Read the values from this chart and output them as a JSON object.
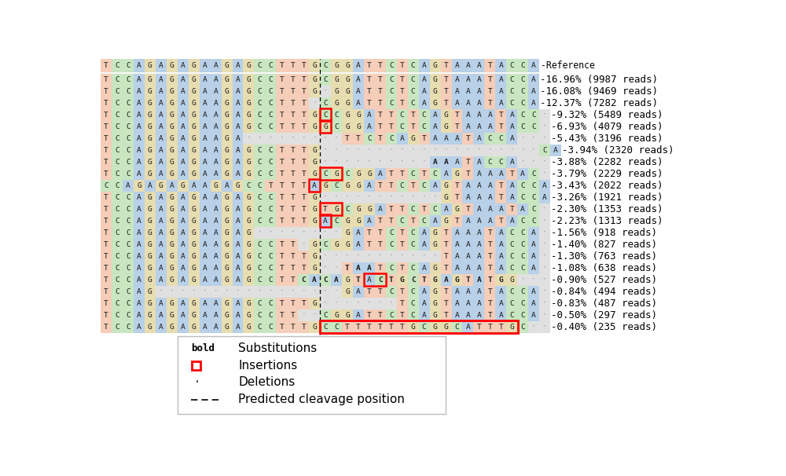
{
  "reference_seq": "TCCAGAGAGAAGAGCCTTTGCGGATTCTCAGTAAATACCA",
  "row_data": [
    {
      "seq": "TCCAGAGAGAAGAGCCTTTGCGGATTCTCAGTAAATACCA",
      "bold": [],
      "ins": [],
      "pct": "16.96%",
      "reads": "9987 reads"
    },
    {
      "seq": "TCCAGAGAGAAGAGCCTTTG·GGATTCTCAGTAAATACCA",
      "bold": [],
      "ins": [],
      "pct": "16.08%",
      "reads": "9469 reads"
    },
    {
      "seq": "TCCAGAGAGAAGAGCCTTT·CGGATTCTCAGTAAATACCA",
      "bold": [],
      "ins": [],
      "pct": "12.37%",
      "reads": "7282 reads"
    },
    {
      "seq": "TCCAGAGAGAAGAGCCTTTGCCGGATTCTCAGTAAATACC·",
      "bold": [],
      "ins": [
        20
      ],
      "pct": "9.32%",
      "reads": "5489 reads"
    },
    {
      "seq": "TCCAGAGAGAAGAGCCTTTGGCGGATTCTCAGTAAATACC·",
      "bold": [],
      "ins": [
        20
      ],
      "pct": "6.93%",
      "reads": "4079 reads"
    },
    {
      "seq": "TCCAGAGAGAAGA·········TTCTCAGTAAATACCA···",
      "bold": [],
      "ins": [],
      "pct": "5.43%",
      "reads": "3196 reads"
    },
    {
      "seq": "TCCAGAGAGAAGAGCCTTTG····················CA",
      "bold": [],
      "ins": [],
      "pct": "3.94%",
      "reads": "2320 reads"
    },
    {
      "seq": "TCCAGAGAGAAGAGCCTTTG··········AAATACCA···",
      "bold": [
        30,
        31
      ],
      "ins": [],
      "pct": "3.88%",
      "reads": "2282 reads"
    },
    {
      "seq": "TCCAGAGAGAAGAGCCTTTGCGCGGATTCTCAGTAAATAC·",
      "bold": [],
      "ins": [
        20,
        21
      ],
      "pct": "3.79%",
      "reads": "2229 reads"
    },
    {
      "seq": "CCAGAGAGAAGAGCCTTTTAGCGGATTCTCAGTAAATACCA",
      "bold": [],
      "ins": [
        19
      ],
      "pct": "3.43%",
      "reads": "2022 reads"
    },
    {
      "seq": "TCCAGAGAGAAGAGCCTTTG···········GTAAATACCA",
      "bold": [],
      "ins": [],
      "pct": "3.26%",
      "reads": "1921 reads"
    },
    {
      "seq": "TCCAGAGAGAAGAGCCTTTGTGCGGATTCTCAGTAAATAC·",
      "bold": [],
      "ins": [
        20,
        21
      ],
      "pct": "2.30%",
      "reads": "1353 reads"
    },
    {
      "seq": "TCCAGAGAGAAGAGCCTTTGACGGATTCTCAGTAAATACC·",
      "bold": [],
      "ins": [
        20
      ],
      "pct": "2.23%",
      "reads": "1313 reads"
    },
    {
      "seq": "TCCAGAGAGAAGAG········GATTCTCAGTAAATACCA·",
      "bold": [],
      "ins": [],
      "pct": "1.56%",
      "reads": "918 reads"
    },
    {
      "seq": "TCCAGAGAGAAGAGCCTT·GCGGATTCTCAGTAAATACCA·",
      "bold": [],
      "ins": [],
      "pct": "1.40%",
      "reads": "827 reads"
    },
    {
      "seq": "TCCAGAGAGAAGAGCCTTTG···········TAAATACCA·",
      "bold": [],
      "ins": [],
      "pct": "1.30%",
      "reads": "763 reads"
    },
    {
      "seq": "TCCAGAGAGAAGAGCCTTTG··TAATCTCAGTAAATACCA·",
      "bold": [
        22,
        23,
        24
      ],
      "ins": [],
      "pct": "1.08%",
      "reads": "638 reads"
    },
    {
      "seq": "TCCAGAGAGAAGAGCCTTCACAGTACTGCTGAGTATGG···",
      "bold": [
        18,
        19,
        20,
        21,
        23,
        25,
        26,
        27,
        28,
        29,
        30,
        31,
        32,
        33,
        34,
        35,
        36
      ],
      "ins": [
        24,
        25
      ],
      "pct": "0.90%",
      "reads": "527 reads"
    },
    {
      "seq": "TCCAG·················GATTCTCAGTAAATACCA·",
      "bold": [],
      "ins": [],
      "pct": "0.84%",
      "reads": "494 reads"
    },
    {
      "seq": "TCCAGAGAGAAGAGCCTTTG·······TCAGTAAATACCA·",
      "bold": [],
      "ins": [],
      "pct": "0.83%",
      "reads": "487 reads"
    },
    {
      "seq": "TCCAGAGAGAAGAGCCTT··CGGATTCTCAGTAAATACCA·",
      "bold": [],
      "ins": [],
      "pct": "0.50%",
      "reads": "297 reads"
    },
    {
      "seq": "TCCAGAGAGAAGAGCCTTTGCCTTTTTTGCGGCATTTGC··",
      "bold": [],
      "ins": [
        20,
        21,
        22,
        23,
        24,
        25,
        26,
        27,
        28,
        29,
        30,
        31,
        32,
        33,
        34,
        35,
        36,
        37
      ],
      "pct": "0.40%",
      "reads": "235 reads"
    }
  ],
  "cleavage_col": 20,
  "nuc_colors": {
    "T": "#f5cdb8",
    "C": "#c8e6c0",
    "A": "#b8d0e8",
    "G": "#e8ddb0"
  },
  "dot_color": "#e0e0e0",
  "dot_text_color": "#888888",
  "ref_label": "-Reference",
  "font_size": 6.8,
  "label_font_size": 9.0
}
